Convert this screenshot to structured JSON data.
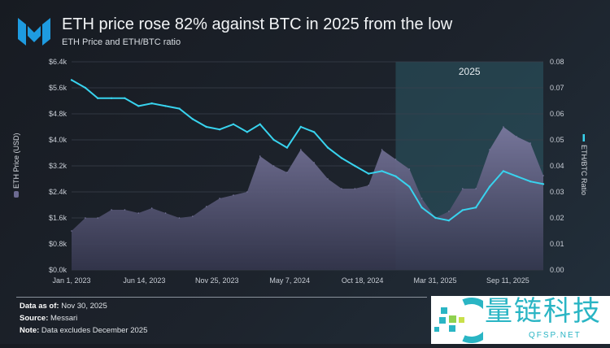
{
  "header": {
    "title": "ETH price rose 82% against BTC in 2025 from the low",
    "subtitle": "ETH Price and ETH/BTC ratio",
    "logo": "M"
  },
  "chart_data": {
    "type": "area+line",
    "title": "ETH price rose 82% against BTC in 2025 from the low",
    "subtitle": "ETH Price and ETH/BTC ratio",
    "left_axis": {
      "label": "ETH Price (USD)",
      "range": [
        0,
        6400
      ],
      "ticks": [
        "$0.0k",
        "$0.8k",
        "$1.6k",
        "$2.4k",
        "$3.2k",
        "$4.0k",
        "$4.8k",
        "$5.6k",
        "$6.4k"
      ]
    },
    "right_axis": {
      "label": "ETH/BTC Ratio",
      "range": [
        0,
        0.08
      ],
      "ticks": [
        "0.00",
        "0.01",
        "0.02",
        "0.03",
        "0.04",
        "0.05",
        "0.06",
        "0.07",
        "0.08"
      ]
    },
    "x_ticks": [
      "Jan 1, 2023",
      "Jun 14, 2023",
      "Nov 25, 2023",
      "May 7, 2024",
      "Oct 18, 2024",
      "Mar 31, 2025",
      "Sep 11, 2025"
    ],
    "x_range": [
      "2023-01-01",
      "2025-11-30"
    ],
    "grid": true,
    "highlight": {
      "label": "2025",
      "from": "2025-01-01",
      "to": "2025-11-30",
      "color": "#2c5a66"
    },
    "dates": [
      "2023-01-01",
      "2023-02-01",
      "2023-03-01",
      "2023-04-01",
      "2023-05-01",
      "2023-06-01",
      "2023-07-01",
      "2023-08-01",
      "2023-09-01",
      "2023-10-01",
      "2023-11-01",
      "2023-12-01",
      "2024-01-01",
      "2024-02-01",
      "2024-03-01",
      "2024-04-01",
      "2024-05-01",
      "2024-06-01",
      "2024-07-01",
      "2024-08-01",
      "2024-09-01",
      "2024-10-01",
      "2024-11-01",
      "2024-12-01",
      "2025-01-01",
      "2025-02-01",
      "2025-03-01",
      "2025-04-01",
      "2025-05-01",
      "2025-06-01",
      "2025-07-01",
      "2025-08-01",
      "2025-09-01",
      "2025-10-01",
      "2025-11-01",
      "2025-11-30"
    ],
    "series": [
      {
        "name": "ETH Price (USD)",
        "axis": "left",
        "kind": "area",
        "color": "#5b5a80",
        "values": [
          1200,
          1600,
          1600,
          1850,
          1850,
          1750,
          1900,
          1750,
          1600,
          1650,
          1950,
          2200,
          2300,
          2400,
          3500,
          3200,
          3000,
          3700,
          3300,
          2800,
          2500,
          2500,
          2600,
          3700,
          3400,
          3100,
          2200,
          1600,
          1800,
          2500,
          2500,
          3700,
          4400,
          4100,
          3900,
          2900
        ]
      },
      {
        "name": "ETH/BTC Ratio",
        "axis": "right",
        "kind": "line",
        "color": "#38d3ee",
        "values": [
          0.073,
          0.07,
          0.066,
          0.066,
          0.066,
          0.063,
          0.064,
          0.063,
          0.062,
          0.058,
          0.055,
          0.054,
          0.056,
          0.053,
          0.056,
          0.05,
          0.047,
          0.055,
          0.053,
          0.047,
          0.043,
          0.04,
          0.037,
          0.038,
          0.036,
          0.032,
          0.024,
          0.02,
          0.019,
          0.023,
          0.024,
          0.032,
          0.038,
          0.036,
          0.034,
          0.033
        ]
      }
    ]
  },
  "footer": {
    "data_as_of_label": "Data as of:",
    "data_as_of": "Nov 30, 2025",
    "source_label": "Source:",
    "source": "Messari",
    "note_label": "Note:",
    "note": "Data excludes December 2025"
  },
  "watermark": {
    "text_cn": "量链科技",
    "text_en": "QFSP.NET"
  }
}
